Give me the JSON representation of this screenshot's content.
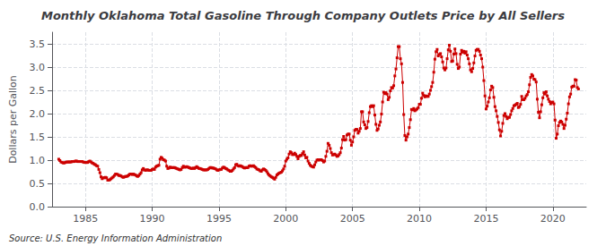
{
  "chart_data": {
    "type": "line",
    "title": "Monthly Oklahoma Total Gasoline Through Company Outlets Price by All Sellers",
    "ylabel": "Dollars per Gallon",
    "annotations": [
      "Source: U.S. Energy Information Administration"
    ],
    "color": "#cc0000",
    "marker": "square",
    "grid": true,
    "xlim": [
      1982.5,
      2022.5
    ],
    "xticks": [
      1985,
      1990,
      1995,
      2000,
      2005,
      2010,
      2015,
      2020
    ],
    "ylim": [
      0.0,
      3.75
    ],
    "yticks": [
      {
        "value": 0.0,
        "label": "0.0"
      },
      0.5,
      {
        "value": 1.0,
        "label": "1.0"
      },
      1.5,
      {
        "value": 2.0,
        "label": "2.0"
      },
      2.5,
      {
        "value": 3.0,
        "label": "3.0"
      },
      3.5
    ],
    "x": [
      1983,
      1983.0833333333333,
      1983.1666666666667,
      1983.25,
      1983.3333333333333,
      1983.4166666666667,
      1983.5,
      1983.5833333333333,
      1983.6666666666667,
      1983.75,
      1983.8333333333333,
      1983.9166666666667,
      1984,
      1984.0833333333333,
      1984.1666666666667,
      1984.25,
      1984.3333333333333,
      1984.4166666666667,
      1984.5,
      1984.5833333333333,
      1984.6666666666667,
      1984.75,
      1984.8333333333333,
      1984.9166666666667,
      1985,
      1985.0833333333333,
      1985.1666666666667,
      1985.25,
      1985.3333333333333,
      1985.4166666666667,
      1985.5,
      1985.5833333333333,
      1985.6666666666667,
      1985.75,
      1985.8333333333333,
      1985.9166666666667,
      1986,
      1986.0833333333333,
      1986.1666666666667,
      1986.25,
      1986.3333333333333,
      1986.4166666666667,
      1986.5,
      1986.5833333333333,
      1986.6666666666667,
      1986.75,
      1986.8333333333333,
      1986.9166666666667,
      1987,
      1987.0833333333333,
      1987.1666666666667,
      1987.25,
      1987.3333333333333,
      1987.4166666666667,
      1987.5,
      1987.5833333333333,
      1987.6666666666667,
      1987.75,
      1987.8333333333333,
      1987.9166666666667,
      1988,
      1988.0833333333333,
      1988.1666666666667,
      1988.25,
      1988.3333333333333,
      1988.4166666666667,
      1988.5,
      1988.5833333333333,
      1988.6666666666667,
      1988.75,
      1988.8333333333333,
      1988.9166666666667,
      1989,
      1989.0833333333333,
      1989.1666666666667,
      1989.25,
      1989.3333333333333,
      1989.4166666666667,
      1989.5,
      1989.5833333333333,
      1989.6666666666667,
      1989.75,
      1989.8333333333333,
      1989.9166666666667,
      1990,
      1990.0833333333333,
      1990.1666666666667,
      1990.25,
      1990.3333333333333,
      1990.4166666666667,
      1990.5,
      1990.5833333333333,
      1990.6666666666667,
      1990.75,
      1990.8333333333333,
      1990.9166666666667,
      1991,
      1991.0833333333333,
      1991.1666666666667,
      1991.25,
      1991.3333333333333,
      1991.4166666666667,
      1991.5,
      1991.5833333333333,
      1991.6666666666667,
      1991.75,
      1991.8333333333333,
      1991.9166666666667,
      1992,
      1992.0833333333333,
      1992.1666666666667,
      1992.25,
      1992.3333333333333,
      1992.4166666666667,
      1992.5,
      1992.5833333333333,
      1992.6666666666667,
      1992.75,
      1992.8333333333333,
      1992.9166666666667,
      1993,
      1993.0833333333333,
      1993.1666666666667,
      1993.25,
      1993.3333333333333,
      1993.4166666666667,
      1993.5,
      1993.5833333333333,
      1993.6666666666667,
      1993.75,
      1993.8333333333333,
      1993.9166666666667,
      1994,
      1994.0833333333333,
      1994.1666666666667,
      1994.25,
      1994.3333333333333,
      1994.4166666666667,
      1994.5,
      1994.5833333333333,
      1994.6666666666667,
      1994.75,
      1994.8333333333333,
      1994.9166666666667,
      1995,
      1995.0833333333333,
      1995.1666666666667,
      1995.25,
      1995.3333333333333,
      1995.4166666666667,
      1995.5,
      1995.5833333333333,
      1995.6666666666667,
      1995.75,
      1995.8333333333333,
      1995.9166666666667,
      1996,
      1996.0833333333333,
      1996.1666666666667,
      1996.25,
      1996.3333333333333,
      1996.4166666666667,
      1996.5,
      1996.5833333333333,
      1996.6666666666667,
      1996.75,
      1996.8333333333333,
      1996.9166666666667,
      1997,
      1997.0833333333333,
      1997.1666666666667,
      1997.25,
      1997.3333333333333,
      1997.4166666666667,
      1997.5,
      1997.5833333333333,
      1997.6666666666667,
      1997.75,
      1997.8333333333333,
      1997.9166666666667,
      1998,
      1998.0833333333333,
      1998.1666666666667,
      1998.25,
      1998.3333333333333,
      1998.4166666666667,
      1998.5,
      1998.5833333333333,
      1998.6666666666667,
      1998.75,
      1998.8333333333333,
      1998.9166666666667,
      1999,
      1999.0833333333333,
      1999.1666666666667,
      1999.25,
      1999.3333333333333,
      1999.4166666666667,
      1999.5,
      1999.5833333333333,
      1999.6666666666667,
      1999.75,
      1999.8333333333333,
      1999.9166666666667,
      2000,
      2000.0833333333333,
      2000.1666666666667,
      2000.25,
      2000.3333333333333,
      2000.4166666666667,
      2000.5,
      2000.5833333333333,
      2000.6666666666667,
      2000.75,
      2000.8333333333333,
      2000.9166666666667,
      2001,
      2001.0833333333333,
      2001.1666666666667,
      2001.25,
      2001.3333333333333,
      2001.4166666666667,
      2001.5,
      2001.5833333333333,
      2001.6666666666667,
      2001.75,
      2001.8333333333333,
      2001.9166666666667,
      2002,
      2002.0833333333333,
      2002.1666666666667,
      2002.25,
      2002.3333333333333,
      2002.4166666666667,
      2002.5,
      2002.5833333333333,
      2002.6666666666667,
      2002.75,
      2002.8333333333333,
      2002.9166666666667,
      2003,
      2003.0833333333333,
      2003.1666666666667,
      2003.25,
      2003.3333333333333,
      2003.4166666666667,
      2003.5,
      2003.5833333333333,
      2003.6666666666667,
      2003.75,
      2003.8333333333333,
      2003.9166666666667,
      2004,
      2004.0833333333333,
      2004.1666666666667,
      2004.25,
      2004.3333333333333,
      2004.4166666666667,
      2004.5,
      2004.5833333333333,
      2004.6666666666667,
      2004.75,
      2004.8333333333333,
      2004.9166666666667,
      2005,
      2005.0833333333333,
      2005.1666666666667,
      2005.25,
      2005.3333333333333,
      2005.4166666666667,
      2005.5,
      2005.5833333333333,
      2005.6666666666667,
      2005.75,
      2005.8333333333333,
      2005.9166666666667,
      2006,
      2006.0833333333333,
      2006.1666666666667,
      2006.25,
      2006.3333333333333,
      2006.4166666666667,
      2006.5,
      2006.5833333333333,
      2006.6666666666667,
      2006.75,
      2006.8333333333333,
      2006.9166666666667,
      2007,
      2007.0833333333333,
      2007.1666666666667,
      2007.25,
      2007.3333333333333,
      2007.4166666666667,
      2007.5,
      2007.5833333333333,
      2007.6666666666667,
      2007.75,
      2007.8333333333333,
      2007.9166666666667,
      2008,
      2008.0833333333333,
      2008.1666666666667,
      2008.25,
      2008.3333333333333,
      2008.4166666666667,
      2008.5,
      2008.5833333333333,
      2008.6666666666667,
      2008.75,
      2008.8333333333333,
      2008.9166666666667,
      2009,
      2009.0833333333333,
      2009.1666666666667,
      2009.25,
      2009.3333333333333,
      2009.4166666666667,
      2009.5,
      2009.5833333333333,
      2009.6666666666667,
      2009.75,
      2009.8333333333333,
      2009.9166666666667,
      2010,
      2010.0833333333333,
      2010.1666666666667,
      2010.25,
      2010.3333333333333,
      2010.4166666666667,
      2010.5,
      2010.5833333333333,
      2010.6666666666667,
      2010.75,
      2010.8333333333333,
      2010.9166666666667,
      2011,
      2011.0833333333333,
      2011.1666666666667,
      2011.25,
      2011.3333333333333,
      2011.4166666666667,
      2011.5,
      2011.5833333333333,
      2011.6666666666667,
      2011.75,
      2011.8333333333333,
      2011.9166666666667,
      2012,
      2012.0833333333333,
      2012.1666666666667,
      2012.25,
      2012.3333333333333,
      2012.4166666666667,
      2012.5,
      2012.5833333333333,
      2012.6666666666667,
      2012.75,
      2012.8333333333333,
      2012.9166666666667,
      2013,
      2013.0833333333333,
      2013.1666666666667,
      2013.25,
      2013.3333333333333,
      2013.4166666666667,
      2013.5,
      2013.5833333333333,
      2013.6666666666667,
      2013.75,
      2013.8333333333333,
      2013.9166666666667,
      2014,
      2014.0833333333333,
      2014.1666666666667,
      2014.25,
      2014.3333333333333,
      2014.4166666666667,
      2014.5,
      2014.5833333333333,
      2014.6666666666667,
      2014.75,
      2014.8333333333333,
      2014.9166666666667,
      2015,
      2015.0833333333333,
      2015.1666666666667,
      2015.25,
      2015.3333333333333,
      2015.4166666666667,
      2015.5,
      2015.5833333333333,
      2015.6666666666667,
      2015.75,
      2015.8333333333333,
      2015.9166666666667,
      2016,
      2016.0833333333333,
      2016.1666666666667,
      2016.25,
      2016.3333333333333,
      2016.4166666666667,
      2016.5,
      2016.5833333333333,
      2016.6666666666667,
      2016.75,
      2016.8333333333333,
      2016.9166666666667,
      2017,
      2017.0833333333333,
      2017.1666666666667,
      2017.25,
      2017.3333333333333,
      2017.4166666666667,
      2017.5,
      2017.5833333333333,
      2017.6666666666667,
      2017.75,
      2017.8333333333333,
      2017.9166666666667,
      2018,
      2018.0833333333333,
      2018.1666666666667,
      2018.25,
      2018.3333333333333,
      2018.4166666666667,
      2018.5,
      2018.5833333333333,
      2018.6666666666667,
      2018.75,
      2018.8333333333333,
      2018.9166666666667,
      2019,
      2019.0833333333333,
      2019.1666666666667,
      2019.25,
      2019.3333333333333,
      2019.4166666666667,
      2019.5,
      2019.5833333333333,
      2019.6666666666667,
      2019.75,
      2019.8333333333333,
      2019.9166666666667,
      2020,
      2020.0833333333333,
      2020.1666666666667,
      2020.25,
      2020.3333333333333,
      2020.4166666666667,
      2020.5,
      2020.5833333333333,
      2020.6666666666667,
      2020.75,
      2020.8333333333333,
      2020.9166666666667,
      2021,
      2021.0833333333333,
      2021.1666666666667,
      2021.25,
      2021.3333333333333,
      2021.4166666666667,
      2021.5,
      2021.5833333333333,
      2021.6666666666667,
      2021.75,
      2021.8333333333333,
      2021.9166666666667
    ],
    "values": [
      1.02,
      0.99,
      0.96,
      0.95,
      0.94,
      0.94,
      0.95,
      0.96,
      0.96,
      0.96,
      0.96,
      0.96,
      0.97,
      0.97,
      0.97,
      0.98,
      0.98,
      0.97,
      0.97,
      0.97,
      0.97,
      0.97,
      0.96,
      0.95,
      0.95,
      0.95,
      0.95,
      0.97,
      0.98,
      0.96,
      0.94,
      0.93,
      0.91,
      0.9,
      0.88,
      0.87,
      0.8,
      0.73,
      0.64,
      0.6,
      0.62,
      0.62,
      0.63,
      0.62,
      0.57,
      0.57,
      0.58,
      0.6,
      0.62,
      0.64,
      0.67,
      0.7,
      0.7,
      0.69,
      0.67,
      0.67,
      0.66,
      0.64,
      0.63,
      0.64,
      0.65,
      0.65,
      0.66,
      0.68,
      0.7,
      0.7,
      0.69,
      0.7,
      0.69,
      0.68,
      0.66,
      0.65,
      0.67,
      0.7,
      0.73,
      0.79,
      0.82,
      0.79,
      0.78,
      0.79,
      0.79,
      0.78,
      0.78,
      0.78,
      0.8,
      0.81,
      0.8,
      0.85,
      0.87,
      0.88,
      0.89,
      1.02,
      1.06,
      1.04,
      1.01,
      1.0,
      0.98,
      0.87,
      0.82,
      0.83,
      0.85,
      0.84,
      0.84,
      0.84,
      0.84,
      0.83,
      0.82,
      0.81,
      0.8,
      0.79,
      0.8,
      0.84,
      0.87,
      0.85,
      0.85,
      0.86,
      0.85,
      0.84,
      0.83,
      0.82,
      0.82,
      0.83,
      0.82,
      0.84,
      0.86,
      0.84,
      0.82,
      0.82,
      0.81,
      0.8,
      0.79,
      0.79,
      0.79,
      0.79,
      0.8,
      0.82,
      0.84,
      0.84,
      0.83,
      0.83,
      0.82,
      0.81,
      0.79,
      0.78,
      0.79,
      0.8,
      0.8,
      0.83,
      0.85,
      0.84,
      0.82,
      0.81,
      0.79,
      0.78,
      0.76,
      0.76,
      0.78,
      0.81,
      0.84,
      0.9,
      0.91,
      0.88,
      0.87,
      0.88,
      0.87,
      0.86,
      0.84,
      0.83,
      0.84,
      0.84,
      0.84,
      0.87,
      0.88,
      0.87,
      0.87,
      0.88,
      0.86,
      0.84,
      0.81,
      0.8,
      0.79,
      0.77,
      0.76,
      0.79,
      0.81,
      0.8,
      0.78,
      0.75,
      0.71,
      0.68,
      0.66,
      0.64,
      0.63,
      0.61,
      0.59,
      0.63,
      0.68,
      0.7,
      0.72,
      0.73,
      0.74,
      0.77,
      0.81,
      0.87,
      0.98,
      1.02,
      1.05,
      1.13,
      1.18,
      1.16,
      1.12,
      1.12,
      1.15,
      1.12,
      1.08,
      1.03,
      1.08,
      1.1,
      1.1,
      1.14,
      1.18,
      1.11,
      1.05,
      1.06,
      0.98,
      0.93,
      0.89,
      0.87,
      0.86,
      0.85,
      0.9,
      0.96,
      1.0,
      1.01,
      1.0,
      1.01,
      1.01,
      0.99,
      0.96,
      0.98,
      1.08,
      1.19,
      1.36,
      1.32,
      1.25,
      1.16,
      1.11,
      1.12,
      1.13,
      1.11,
      1.08,
      1.09,
      1.12,
      1.16,
      1.26,
      1.44,
      1.51,
      1.43,
      1.44,
      1.54,
      1.56,
      1.56,
      1.43,
      1.32,
      1.39,
      1.5,
      1.64,
      1.66,
      1.66,
      1.58,
      1.62,
      1.68,
      2.04,
      2.04,
      1.82,
      1.76,
      1.68,
      1.7,
      1.83,
      2.02,
      2.15,
      2.17,
      2.15,
      2.17,
      1.97,
      1.77,
      1.64,
      1.67,
      1.75,
      1.82,
      1.99,
      2.25,
      2.46,
      2.43,
      2.45,
      2.42,
      2.3,
      2.35,
      2.49,
      2.56,
      2.55,
      2.6,
      2.81,
      2.96,
      3.2,
      3.44,
      3.44,
      3.18,
      3.07,
      2.67,
      1.98,
      1.53,
      1.43,
      1.5,
      1.56,
      1.7,
      1.87,
      2.09,
      2.08,
      2.11,
      2.06,
      2.08,
      2.1,
      2.13,
      2.2,
      2.2,
      2.33,
      2.44,
      2.39,
      2.36,
      2.38,
      2.37,
      2.37,
      2.42,
      2.5,
      2.58,
      2.67,
      2.89,
      3.17,
      3.33,
      3.38,
      3.24,
      3.27,
      3.29,
      3.22,
      3.11,
      2.98,
      2.94,
      2.98,
      3.18,
      3.37,
      3.47,
      3.34,
      3.12,
      3.13,
      3.28,
      3.39,
      3.29,
      3.06,
      2.97,
      3.0,
      3.28,
      3.36,
      3.32,
      3.34,
      3.3,
      3.33,
      3.26,
      3.18,
      3.07,
      2.94,
      2.9,
      2.97,
      3.09,
      3.24,
      3.36,
      3.38,
      3.38,
      3.34,
      3.26,
      3.18,
      3.0,
      2.71,
      2.38,
      2.1,
      2.16,
      2.25,
      2.34,
      2.51,
      2.59,
      2.56,
      2.35,
      2.15,
      2.06,
      1.94,
      1.81,
      1.65,
      1.52,
      1.62,
      1.79,
      1.96,
      2.0,
      1.94,
      1.89,
      1.92,
      1.92,
      1.98,
      2.06,
      2.11,
      2.17,
      2.18,
      2.2,
      2.22,
      2.13,
      2.15,
      2.2,
      2.37,
      2.3,
      2.3,
      2.33,
      2.38,
      2.41,
      2.47,
      2.62,
      2.78,
      2.84,
      2.81,
      2.74,
      2.73,
      2.68,
      2.31,
      2.03,
      1.91,
      2.04,
      2.19,
      2.34,
      2.45,
      2.42,
      2.47,
      2.38,
      2.31,
      2.26,
      2.21,
      2.24,
      2.25,
      2.21,
      1.86,
      1.47,
      1.56,
      1.74,
      1.81,
      1.84,
      1.82,
      1.77,
      1.68,
      1.75,
      1.88,
      2.01,
      2.21,
      2.36,
      2.42,
      2.57,
      2.59,
      2.59,
      2.73,
      2.72,
      2.56,
      2.53
    ]
  }
}
